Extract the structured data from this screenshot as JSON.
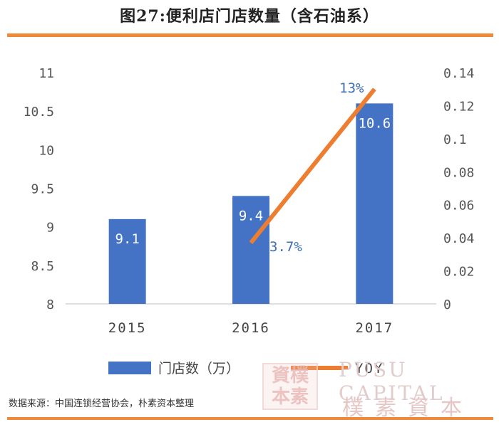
{
  "title": "图27:便利店门店数量（含石油系）",
  "source_note": "数据来源：中国连锁经营协会，朴素资本整理",
  "watermark": {
    "seal_text": "資樸本素",
    "brand_en": "PUSU CAPITAL",
    "brand_cn": "樸素資本"
  },
  "colors": {
    "bar": "#4472c4",
    "line": "#ed7d31",
    "accent_rule": "#ee8a3a",
    "line_label": "#3a6fb5"
  },
  "chart_data": {
    "type": "bar",
    "categories": [
      "2015",
      "2016",
      "2017"
    ],
    "series": [
      {
        "name": "门店数（万）",
        "type": "bar",
        "axis": "left",
        "values": [
          9.1,
          9.4,
          10.6
        ],
        "labels": [
          "9.1",
          "9.4",
          "10.6"
        ]
      },
      {
        "name": "YOY",
        "type": "line",
        "axis": "right",
        "values": [
          null,
          0.037,
          0.13
        ],
        "labels": [
          "",
          "3.7%",
          "13%"
        ]
      }
    ],
    "y_left": {
      "min": 8,
      "max": 11,
      "ticks": [
        "8",
        "8.5",
        "9",
        "9.5",
        "10",
        "10.5",
        "11"
      ]
    },
    "y_right": {
      "min": 0,
      "max": 0.14,
      "ticks": [
        "0",
        "0.02",
        "0.04",
        "0.06",
        "0.08",
        "0.1",
        "0.12",
        "0.14"
      ]
    },
    "grid": false,
    "legend_position": "bottom"
  }
}
